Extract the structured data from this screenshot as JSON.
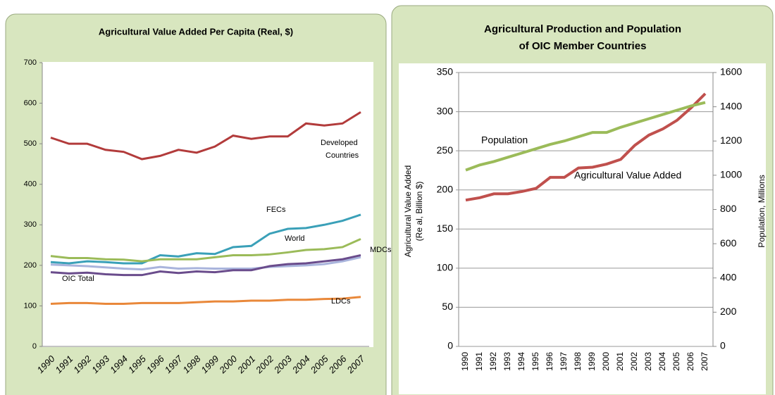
{
  "chart_data": [
    {
      "type": "line",
      "title": [
        "Agricultural Value Added Per Capita (Real, $)"
      ],
      "categories": [
        "1990",
        "1991",
        "1992",
        "1993",
        "1994",
        "1995",
        "1996",
        "1997",
        "1998",
        "1999",
        "2000",
        "2001",
        "2002",
        "2003",
        "2004",
        "2005",
        "2006",
        "2007"
      ],
      "ylim": [
        0,
        700
      ],
      "yticks": [
        0,
        100,
        200,
        300,
        400,
        500,
        600,
        700
      ],
      "grid": false,
      "series": [
        {
          "name": "Developed Countries",
          "color": "#b23b3b",
          "values": [
            515,
            500,
            500,
            485,
            480,
            462,
            470,
            485,
            478,
            493,
            520,
            512,
            518,
            518,
            550,
            545,
            550,
            578
          ]
        },
        {
          "name": "FECs",
          "color": "#3aa0b8",
          "values": [
            208,
            205,
            210,
            208,
            205,
            205,
            225,
            222,
            230,
            228,
            245,
            248,
            278,
            290,
            292,
            300,
            310,
            325
          ]
        },
        {
          "name": "World",
          "color": "#9bbb59",
          "values": [
            223,
            218,
            218,
            215,
            214,
            210,
            215,
            215,
            215,
            220,
            225,
            225,
            227,
            232,
            238,
            240,
            245,
            265
          ]
        },
        {
          "name": "MDCs",
          "color": "#a9b4dc",
          "values": [
            202,
            200,
            198,
            195,
            192,
            190,
            196,
            192,
            193,
            192,
            192,
            192,
            196,
            198,
            200,
            203,
            210,
            220
          ]
        },
        {
          "name": "OIC Total",
          "color": "#6a4c8c",
          "values": [
            183,
            180,
            182,
            178,
            176,
            176,
            185,
            181,
            185,
            183,
            188,
            188,
            198,
            203,
            205,
            210,
            215,
            225
          ]
        },
        {
          "name": "LDCs",
          "color": "#e9883a",
          "values": [
            105,
            107,
            107,
            105,
            105,
            107,
            107,
            107,
            109,
            111,
            111,
            113,
            113,
            115,
            115,
            117,
            118,
            122
          ]
        }
      ]
    },
    {
      "type": "line",
      "title": [
        "Agricultural Production and Population",
        "of OIC Member Countries"
      ],
      "y_label": [
        "Agricultural Value Added",
        "(Re al,  Billion $)"
      ],
      "y2_label": "Population, Millions",
      "categories": [
        "1990",
        "1991",
        "1992",
        "1993",
        "1994",
        "1995",
        "1996",
        "1997",
        "1998",
        "1999",
        "2000",
        "2001",
        "2002",
        "2003",
        "2004",
        "2005",
        "2006",
        "2007"
      ],
      "ylim": [
        0,
        350
      ],
      "yticks": [
        0,
        50,
        100,
        150,
        200,
        250,
        300,
        350
      ],
      "y2lim": [
        0,
        1600
      ],
      "y2ticks": [
        0,
        200,
        400,
        600,
        800,
        1000,
        1200,
        1400,
        1600
      ],
      "grid": true,
      "series": [
        {
          "name": "Agricultural Value Added",
          "color": "#c0504d",
          "values": [
            187,
            190,
            195,
            195,
            198,
            202,
            216,
            216,
            228,
            229,
            233,
            239,
            257,
            270,
            278,
            289,
            305,
            323
          ]
        },
        {
          "name": "Population",
          "color": "#9bbb59",
          "axis": "y2",
          "values": [
            1030,
            1060,
            1080,
            1105,
            1130,
            1155,
            1180,
            1200,
            1225,
            1250,
            1250,
            1280,
            1305,
            1330,
            1355,
            1380,
            1405,
            1425
          ]
        }
      ]
    }
  ]
}
